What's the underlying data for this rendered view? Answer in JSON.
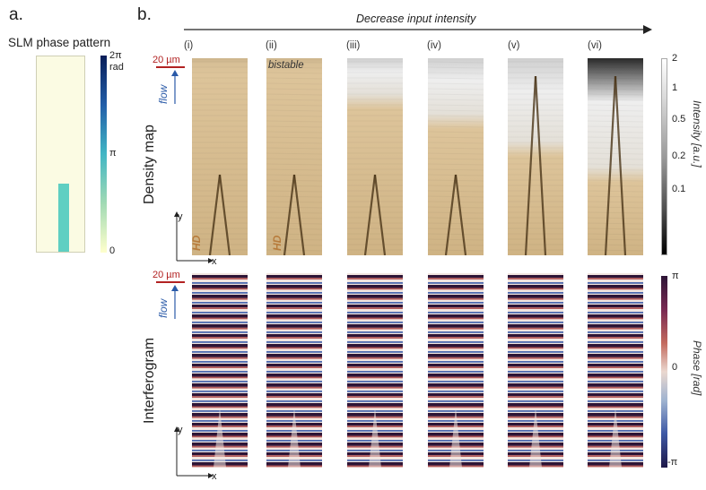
{
  "panel_a": {
    "letter": "a.",
    "title": "SLM phase pattern",
    "colorbar": {
      "top_label": "2π",
      "unit": "rad",
      "mid_label": "π",
      "bottom_label": "0"
    }
  },
  "panel_b": {
    "letter": "b.",
    "arrow_label": "Decrease input intensity",
    "columns": [
      "(i)",
      "(ii)",
      "(iii)",
      "(iv)",
      "(v)",
      "(vi)"
    ],
    "bistable_label": "bistable",
    "hd_label": "HD",
    "rows": {
      "density": "Density map",
      "interferogram": "Interferogram"
    },
    "scale_bar": "20 µm",
    "flow_label": "flow",
    "axis_x": "x",
    "axis_y": "y",
    "intensity_colorbar": {
      "title": "Intensity [a.u.]",
      "ticks": [
        "2",
        "1",
        "0.5",
        "0.2",
        "0.1"
      ]
    },
    "phase_colorbar": {
      "title": "Phase [rad]",
      "top": "π",
      "mid": "0",
      "bottom": "-π"
    }
  },
  "colors": {
    "slm_background": "#fbfbe3",
    "slm_bar": "#5fcfc2",
    "density_tint": "#d6b98a",
    "scale_red": "#b22222",
    "flow_blue": "#2a5aa8"
  }
}
